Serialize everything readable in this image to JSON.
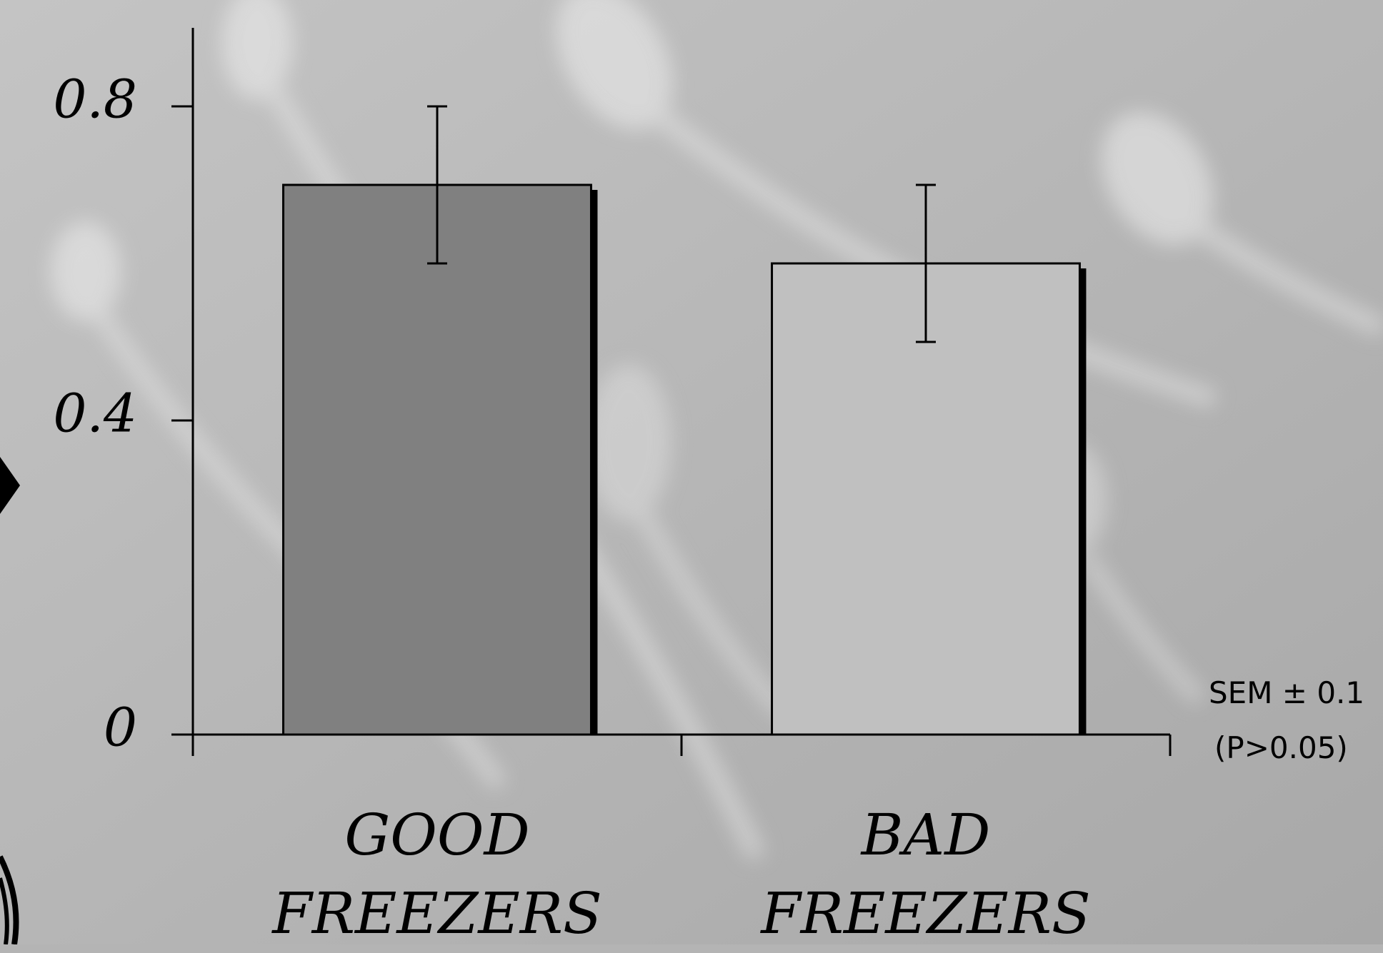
{
  "chart_data": {
    "type": "bar",
    "categories": [
      "GOOD FREEZERS",
      "BAD FREEZERS"
    ],
    "series": [
      {
        "colors": [
          "#808080",
          "#c0c0c0"
        ],
        "values": [
          0.7,
          0.6
        ],
        "errors": [
          0.1,
          0.1
        ]
      }
    ],
    "ylim": [
      0,
      0.9
    ],
    "yticks": [
      0,
      0.4,
      0.8
    ],
    "annotations": [
      "SEM ± 0.1",
      "(P>0.05)"
    ]
  }
}
